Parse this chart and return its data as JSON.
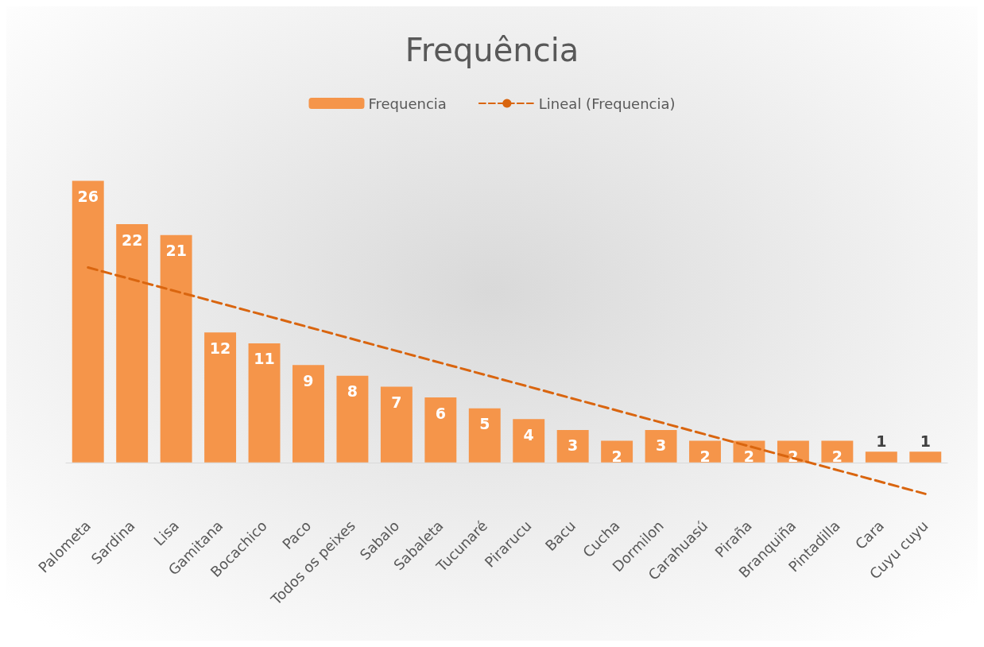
{
  "chart_data": {
    "type": "bar",
    "title": "Frequência",
    "categories": [
      "Palometa",
      "Sardina",
      "Lisa",
      "Gamitana",
      "Bocachico",
      "Paco",
      "Todos os peixes",
      "Sabalo",
      "Sabaleta",
      "Tucunaré",
      "Pirarucu",
      "Bacu",
      "Cucha",
      "Dormilon",
      "Carahuasú",
      "Piraña",
      "Branquiña",
      "Pintadilla",
      "Cara",
      "Cuyu cuyu"
    ],
    "series": [
      {
        "name": "Frequencia",
        "color": "#f5954a",
        "values": [
          26,
          22,
          21,
          12,
          11,
          9,
          8,
          7,
          6,
          5,
          4,
          3,
          2,
          3,
          2,
          2,
          2,
          2,
          1,
          1
        ],
        "value_labels": [
          "26",
          "22",
          "21",
          "12",
          "11",
          "9",
          "8",
          "7",
          "6",
          "5",
          "4",
          "3",
          "2",
          "3",
          "2",
          "2",
          "2",
          "2",
          "1",
          "1"
        ]
      },
      {
        "name": "Lineal (Frequencia)",
        "type": "line",
        "line_style": "dashed",
        "color": "#d9650f",
        "x": [
          "Palometa",
          "Cuyu cuyu"
        ],
        "values": [
          18,
          -2.9
        ]
      }
    ],
    "legend": "top",
    "grid": false,
    "tick_labels": "x"
  }
}
